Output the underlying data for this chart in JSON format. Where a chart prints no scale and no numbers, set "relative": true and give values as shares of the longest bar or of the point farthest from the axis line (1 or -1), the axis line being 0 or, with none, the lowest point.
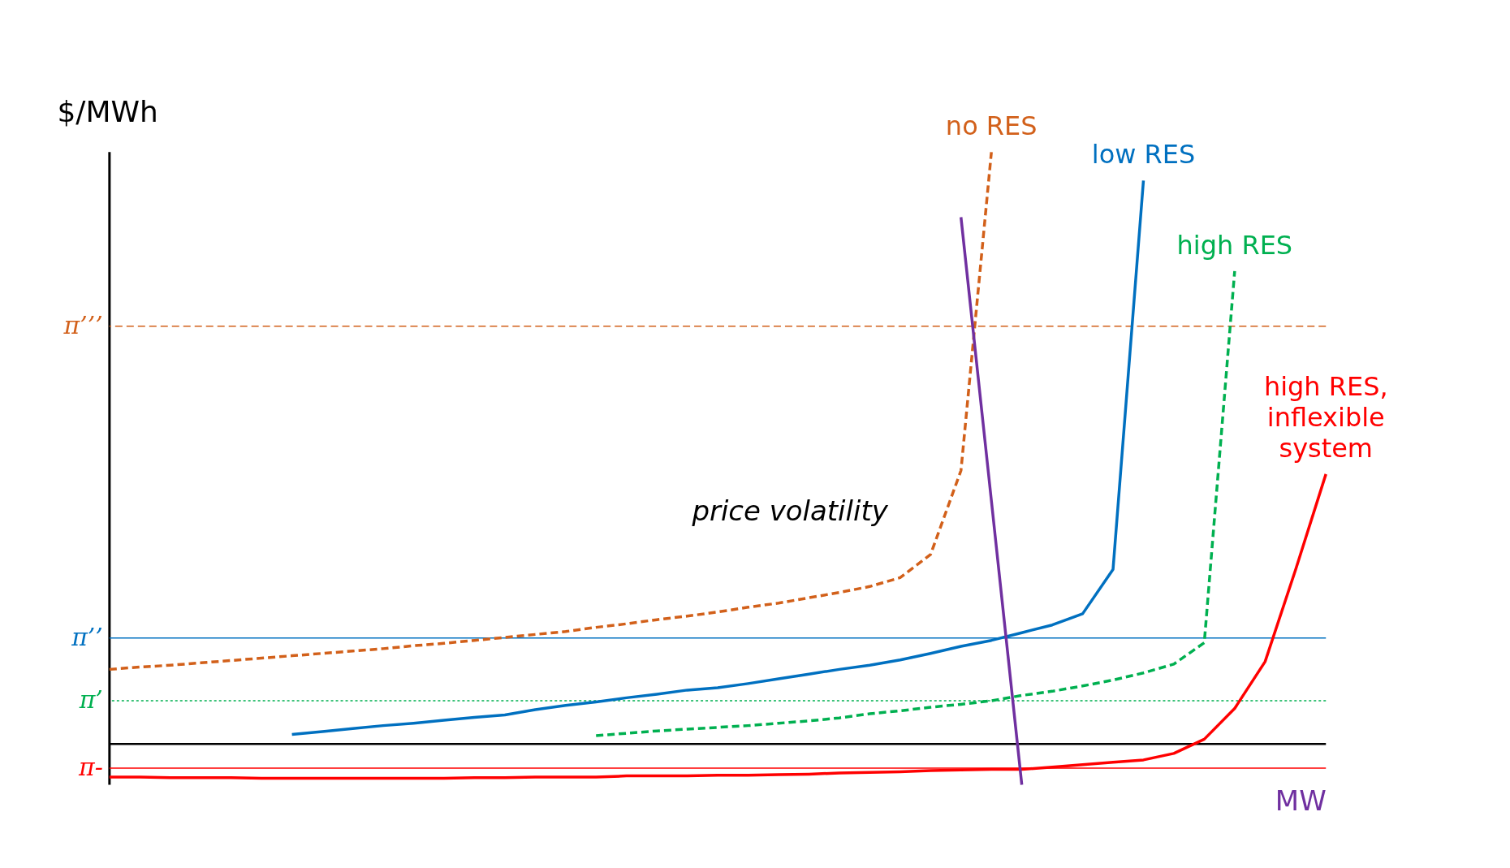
{
  "chart_data": {
    "type": "line",
    "relative": true,
    "xlabel": "MW",
    "ylabel": "$/MWh",
    "categories": [
      null,
      null,
      null,
      null,
      null,
      null,
      null,
      null,
      null,
      null,
      null,
      null,
      null,
      null,
      null,
      null,
      null,
      null,
      null,
      null,
      null,
      null,
      null,
      null,
      null,
      null,
      null,
      null,
      null,
      null,
      null,
      null,
      null,
      null,
      null,
      null,
      null,
      null,
      null,
      null,
      null
    ],
    "series": [
      {
        "name": "no RES",
        "color": "#d2601a",
        "line_style": "dashed",
        "values": [
          0.126,
          0.13,
          0.133,
          0.137,
          0.141,
          0.145,
          0.149,
          0.153,
          0.157,
          0.161,
          0.166,
          0.17,
          0.175,
          0.18,
          0.185,
          0.19,
          0.197,
          0.203,
          0.21,
          0.216,
          0.223,
          0.231,
          0.238,
          0.247,
          0.256,
          0.266,
          0.281,
          0.32,
          0.462,
          1.0,
          null,
          null,
          null,
          null,
          null,
          null,
          null,
          null,
          null,
          null,
          null
        ]
      },
      {
        "name": "low RES",
        "color": "#0070c0",
        "line_style": "solid",
        "values": [
          null,
          null,
          null,
          null,
          null,
          null,
          0.016,
          0.021,
          0.026,
          0.031,
          0.035,
          0.04,
          0.045,
          0.049,
          0.058,
          0.065,
          0.071,
          0.078,
          0.084,
          0.091,
          0.095,
          0.102,
          0.11,
          0.118,
          0.126,
          0.133,
          0.142,
          0.153,
          0.165,
          0.175,
          0.188,
          0.201,
          0.22,
          0.295,
          0.952,
          null,
          null,
          null,
          null,
          null,
          null
        ]
      },
      {
        "name": "high RES",
        "color": "#00b050",
        "line_style": "dashed",
        "values": [
          null,
          null,
          null,
          null,
          null,
          null,
          null,
          null,
          null,
          null,
          null,
          null,
          null,
          null,
          null,
          null,
          0.014,
          0.018,
          0.022,
          0.025,
          0.028,
          0.031,
          0.035,
          0.039,
          0.044,
          0.051,
          0.056,
          0.062,
          0.067,
          0.073,
          0.082,
          0.089,
          0.098,
          0.108,
          0.12,
          0.135,
          0.171,
          0.799,
          null,
          null,
          null
        ]
      },
      {
        "name": "high RES, inflexible system",
        "color": "#ff0000",
        "line_style": "solid",
        "values": [
          -0.056,
          -0.056,
          -0.057,
          -0.057,
          -0.057,
          -0.058,
          -0.058,
          -0.058,
          -0.058,
          -0.058,
          -0.058,
          -0.058,
          -0.057,
          -0.057,
          -0.056,
          -0.056,
          -0.056,
          -0.054,
          -0.054,
          -0.054,
          -0.053,
          -0.053,
          -0.052,
          -0.051,
          -0.049,
          -0.048,
          -0.047,
          -0.045,
          -0.044,
          -0.043,
          -0.043,
          -0.039,
          -0.035,
          -0.031,
          -0.027,
          -0.016,
          0.008,
          0.06,
          0.139,
          0.294,
          0.456
        ]
      },
      {
        "color": "#7030a0",
        "line_style": "solid",
        "values": [
          null,
          null,
          null,
          null,
          null,
          null,
          null,
          null,
          null,
          null,
          null,
          null,
          null,
          null,
          null,
          null,
          null,
          null,
          null,
          null,
          null,
          null,
          null,
          null,
          null,
          null,
          null,
          null,
          0.89,
          0.411,
          -0.069,
          null,
          null,
          null,
          null,
          null,
          null,
          null,
          null,
          null,
          null
        ]
      }
    ],
    "ref_lines": [
      {
        "axis": "y",
        "value": 0.706,
        "label": "π’’’",
        "color": "#d2601a",
        "line_style": "dashed"
      },
      {
        "axis": "y",
        "value": 0.179,
        "label": "π’’",
        "color": "#0070c0",
        "line_style": "solid"
      },
      {
        "axis": "y",
        "value": 0.073,
        "label": "π’",
        "color": "#00b050",
        "line_style": "dotted"
      },
      {
        "axis": "y",
        "value": -0.041,
        "label": "π-",
        "color": "#ff0000",
        "line_style": "solid"
      }
    ],
    "annotations": [
      "price volatility"
    ]
  }
}
